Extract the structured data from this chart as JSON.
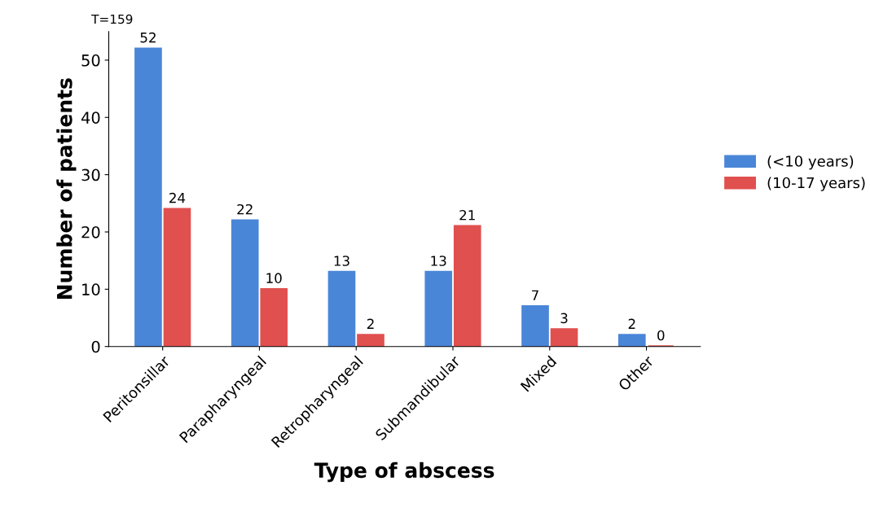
{
  "chart_data": {
    "type": "bar",
    "xlabel": "Type of abscess",
    "ylabel": "Number of patients",
    "categories": [
      "Peritonsillar",
      "Parapharyngeal",
      "Retropharyngeal",
      "Submandibular",
      "Mixed",
      "Other"
    ],
    "series": [
      {
        "name": "(<10 years)",
        "color": "#4a86d8",
        "values": [
          52,
          22,
          13,
          13,
          7,
          2
        ]
      },
      {
        "name": "(10-17 years)",
        "color": "#e0504f",
        "values": [
          24,
          10,
          2,
          21,
          3,
          0
        ]
      }
    ],
    "ylim": [
      0,
      55
    ],
    "yticks": [
      0,
      10,
      20,
      30,
      40,
      50
    ],
    "data_labels": true,
    "legend": "right",
    "grid": false,
    "annotations": [
      "T=159"
    ]
  }
}
